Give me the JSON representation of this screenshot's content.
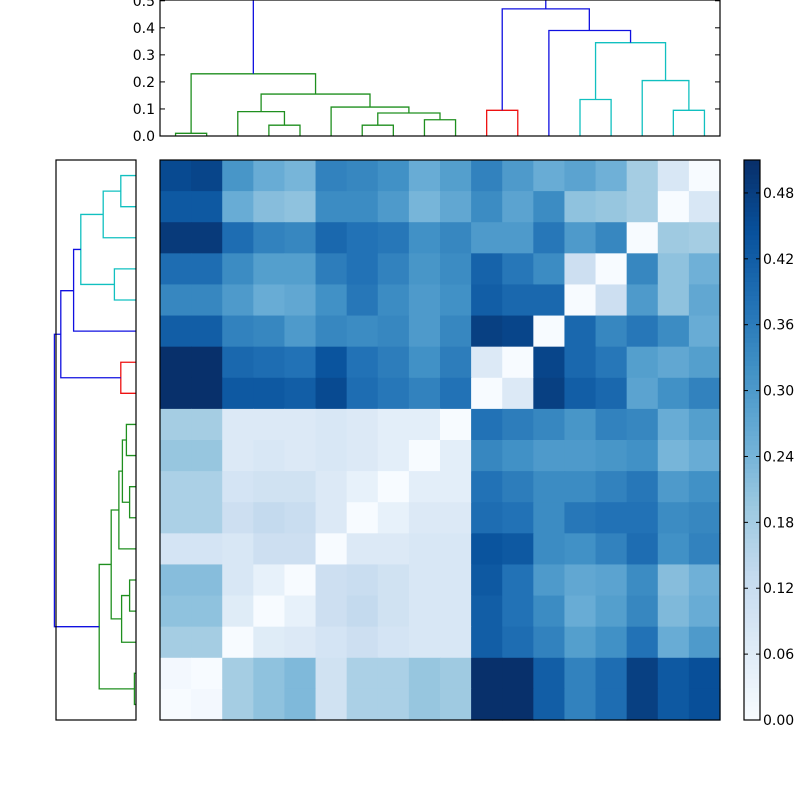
{
  "chart_data": {
    "type": "heatmap",
    "title": "",
    "description": "Clustered distance heatmap with top and left dendrograms and a Blues colorbar",
    "n_rows": 18,
    "n_cols": 18,
    "colormap": "Blues",
    "vmin": 0.0,
    "vmax": 0.51,
    "matrix": [
      [
        0.46,
        0.47,
        0.31,
        0.26,
        0.24,
        0.35,
        0.34,
        0.32,
        0.26,
        0.29,
        0.35,
        0.3,
        0.26,
        0.28,
        0.25,
        0.18,
        0.08,
        0.0
      ],
      [
        0.43,
        0.43,
        0.26,
        0.22,
        0.21,
        0.33,
        0.33,
        0.3,
        0.24,
        0.27,
        0.33,
        0.28,
        0.33,
        0.21,
        0.2,
        0.18,
        0.0,
        0.08
      ],
      [
        0.49,
        0.49,
        0.39,
        0.35,
        0.34,
        0.4,
        0.38,
        0.37,
        0.32,
        0.34,
        0.3,
        0.3,
        0.37,
        0.3,
        0.34,
        0.0,
        0.19,
        0.18
      ],
      [
        0.39,
        0.39,
        0.33,
        0.29,
        0.29,
        0.36,
        0.38,
        0.35,
        0.31,
        0.33,
        0.41,
        0.37,
        0.33,
        0.11,
        0.0,
        0.34,
        0.21,
        0.25
      ],
      [
        0.34,
        0.34,
        0.3,
        0.26,
        0.27,
        0.32,
        0.37,
        0.33,
        0.3,
        0.32,
        0.42,
        0.4,
        0.4,
        0.0,
        0.11,
        0.3,
        0.21,
        0.27
      ],
      [
        0.42,
        0.42,
        0.35,
        0.34,
        0.3,
        0.34,
        0.33,
        0.34,
        0.3,
        0.34,
        0.48,
        0.47,
        0.0,
        0.4,
        0.34,
        0.37,
        0.33,
        0.26
      ],
      [
        0.51,
        0.51,
        0.4,
        0.39,
        0.38,
        0.44,
        0.38,
        0.36,
        0.32,
        0.36,
        0.07,
        0.0,
        0.47,
        0.4,
        0.37,
        0.29,
        0.27,
        0.29
      ],
      [
        0.51,
        0.51,
        0.43,
        0.43,
        0.42,
        0.46,
        0.39,
        0.37,
        0.35,
        0.38,
        0.0,
        0.07,
        0.48,
        0.42,
        0.4,
        0.28,
        0.32,
        0.35
      ],
      [
        0.18,
        0.18,
        0.07,
        0.07,
        0.07,
        0.08,
        0.07,
        0.05,
        0.05,
        0.0,
        0.38,
        0.36,
        0.34,
        0.31,
        0.35,
        0.34,
        0.26,
        0.29
      ],
      [
        0.2,
        0.2,
        0.07,
        0.08,
        0.07,
        0.08,
        0.07,
        0.05,
        0.0,
        0.05,
        0.34,
        0.32,
        0.3,
        0.3,
        0.31,
        0.32,
        0.24,
        0.26
      ],
      [
        0.17,
        0.17,
        0.09,
        0.1,
        0.1,
        0.07,
        0.04,
        0.0,
        0.05,
        0.05,
        0.38,
        0.36,
        0.33,
        0.33,
        0.35,
        0.37,
        0.3,
        0.32
      ],
      [
        0.17,
        0.17,
        0.11,
        0.13,
        0.12,
        0.07,
        0.0,
        0.04,
        0.07,
        0.07,
        0.39,
        0.38,
        0.33,
        0.37,
        0.38,
        0.38,
        0.33,
        0.34
      ],
      [
        0.09,
        0.09,
        0.08,
        0.11,
        0.11,
        0.0,
        0.07,
        0.07,
        0.08,
        0.08,
        0.44,
        0.43,
        0.33,
        0.32,
        0.35,
        0.39,
        0.32,
        0.35
      ],
      [
        0.22,
        0.22,
        0.08,
        0.04,
        0.0,
        0.11,
        0.12,
        0.1,
        0.08,
        0.08,
        0.43,
        0.38,
        0.3,
        0.27,
        0.28,
        0.33,
        0.22,
        0.25
      ],
      [
        0.21,
        0.21,
        0.06,
        0.0,
        0.04,
        0.11,
        0.13,
        0.1,
        0.08,
        0.08,
        0.42,
        0.38,
        0.33,
        0.26,
        0.29,
        0.34,
        0.23,
        0.26
      ],
      [
        0.18,
        0.18,
        0.0,
        0.06,
        0.07,
        0.09,
        0.11,
        0.09,
        0.08,
        0.08,
        0.42,
        0.39,
        0.35,
        0.29,
        0.32,
        0.38,
        0.26,
        0.3
      ],
      [
        0.01,
        0.0,
        0.18,
        0.21,
        0.23,
        0.1,
        0.17,
        0.17,
        0.2,
        0.19,
        0.51,
        0.51,
        0.42,
        0.35,
        0.39,
        0.48,
        0.43,
        0.45
      ],
      [
        0.0,
        0.01,
        0.18,
        0.21,
        0.23,
        0.1,
        0.17,
        0.17,
        0.2,
        0.19,
        0.51,
        0.51,
        0.42,
        0.35,
        0.39,
        0.48,
        0.43,
        0.45
      ]
    ],
    "colorbar": {
      "ticks": [
        0.0,
        0.06,
        0.12,
        0.18,
        0.24,
        0.3,
        0.36,
        0.42,
        0.48
      ],
      "tick_labels": [
        "0.00",
        "0.06",
        "0.12",
        "0.18",
        "0.24",
        "0.30",
        "0.36",
        "0.42",
        "0.48"
      ],
      "position": "right"
    },
    "top_dendrogram": {
      "yticks": [
        0.0,
        0.1,
        0.2,
        0.3,
        0.4,
        0.5
      ],
      "ytick_labels": [
        "0.0",
        "0.1",
        "0.2",
        "0.3",
        "0.4",
        "0.5"
      ],
      "ylim": [
        0.0,
        0.525
      ],
      "links": [
        {
          "x": [
            0,
            1
          ],
          "height": 0.01,
          "color": "green"
        },
        {
          "x": [
            3,
            4
          ],
          "height": 0.04,
          "color": "green"
        },
        {
          "x": [
            2,
            3.5
          ],
          "height": 0.09,
          "color": "green"
        },
        {
          "x": [
            6,
            7
          ],
          "height": 0.04,
          "color": "green"
        },
        {
          "x": [
            8,
            9
          ],
          "height": 0.06,
          "color": "green"
        },
        {
          "x": [
            6.5,
            8.5
          ],
          "height": 0.085,
          "color": "green"
        },
        {
          "x": [
            5,
            7.5
          ],
          "height": 0.107,
          "color": "green"
        },
        {
          "x": [
            2.75,
            6.25
          ],
          "height": 0.155,
          "color": "green"
        },
        {
          "x": [
            0.5,
            4.5
          ],
          "height": 0.23,
          "color": "green"
        },
        {
          "x": [
            10,
            11
          ],
          "height": 0.095,
          "color": "red"
        },
        {
          "x": [
            13,
            14
          ],
          "height": 0.135,
          "color": "cyan"
        },
        {
          "x": [
            16,
            17
          ],
          "height": 0.095,
          "color": "cyan"
        },
        {
          "x": [
            15,
            16.5
          ],
          "height": 0.205,
          "color": "cyan"
        },
        {
          "x": [
            13.5,
            15.75
          ],
          "height": 0.345,
          "color": "cyan"
        },
        {
          "x": [
            12,
            14.625
          ],
          "height": 0.39,
          "color": "blue"
        },
        {
          "x": [
            10.5,
            13.3
          ],
          "height": 0.47,
          "color": "blue"
        },
        {
          "x": [
            2.5,
            11.9
          ],
          "height": 0.51,
          "color": "blue"
        }
      ]
    },
    "left_dendrogram": {
      "orientation": "left",
      "mirrors": "top_dendrogram (leaf order top-to-bottom reversed)"
    }
  },
  "colors": {
    "green": "#1f8f1f",
    "red": "#ee1111",
    "cyan": "#11c0c0",
    "blue": "#1010e0"
  }
}
